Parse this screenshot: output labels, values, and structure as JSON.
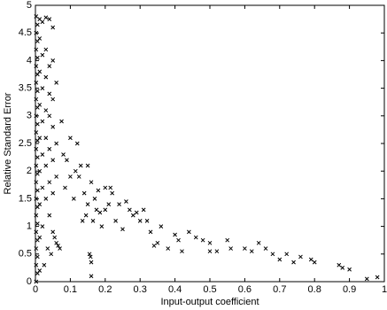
{
  "chart_data": {
    "type": "scatter",
    "xlabel": "Input-output coefficient",
    "ylabel": "Relative Standard Error",
    "color": "#000000",
    "xlim": [
      0,
      1
    ],
    "xticks": [
      0,
      0.1,
      0.2,
      0.3,
      0.4,
      0.5,
      0.6,
      0.7,
      0.8,
      0.9,
      1
    ],
    "ylim": [
      0,
      5
    ],
    "yticks": [
      0,
      0.5,
      1,
      1.5,
      2,
      2.5,
      3,
      3.5,
      4,
      4.5,
      5
    ],
    "grid": false,
    "x": [
      0.002,
      0.002,
      0.002,
      0.002,
      0.002,
      0.002,
      0.002,
      0.002,
      0.002,
      0.002,
      0.002,
      0.002,
      0.002,
      0.002,
      0.002,
      0.002,
      0.002,
      0.006,
      0.006,
      0.006,
      0.006,
      0.006,
      0.006,
      0.006,
      0.006,
      0.006,
      0.006,
      0.006,
      0.006,
      0.006,
      0.006,
      0.006,
      0.006,
      0.012,
      0.012,
      0.012,
      0.012,
      0.012,
      0.012,
      0.012,
      0.012,
      0.012,
      0.02,
      0.02,
      0.02,
      0.02,
      0.02,
      0.02,
      0.02,
      0.03,
      0.03,
      0.03,
      0.03,
      0.03,
      0.03,
      0.03,
      0.04,
      0.04,
      0.04,
      0.04,
      0.04,
      0.04,
      0.04,
      0.05,
      0.05,
      0.05,
      0.05,
      0.05,
      0.05,
      0.05,
      0.06,
      0.06,
      0.06,
      0.06,
      0.055,
      0.065,
      0.07,
      0.075,
      0.08,
      0.085,
      0.09,
      0.1,
      0.1,
      0.11,
      0.115,
      0.12,
      0.125,
      0.13,
      0.135,
      0.14,
      0.145,
      0.15,
      0.15,
      0.155,
      0.158,
      0.16,
      0.16,
      0.16,
      0.165,
      0.17,
      0.175,
      0.18,
      0.185,
      0.19,
      0.2,
      0.2,
      0.21,
      0.215,
      0.22,
      0.23,
      0.24,
      0.25,
      0.26,
      0.27,
      0.28,
      0.29,
      0.3,
      0.31,
      0.32,
      0.33,
      0.34,
      0.35,
      0.36,
      0.38,
      0.4,
      0.41,
      0.42,
      0.44,
      0.46,
      0.48,
      0.5,
      0.5,
      0.52,
      0.55,
      0.56,
      0.6,
      0.62,
      0.64,
      0.66,
      0.68,
      0.7,
      0.72,
      0.74,
      0.76,
      0.79,
      0.8,
      0.87,
      0.88,
      0.9,
      0.95,
      0.98,
      0.035,
      0.045,
      0.025
    ],
    "values": [
      0,
      0.3,
      0.6,
      0.9,
      1.2,
      1.5,
      1.8,
      2.1,
      2.4,
      2.7,
      3.0,
      3.3,
      3.6,
      3.9,
      4.2,
      4.5,
      4.8,
      0.15,
      0.45,
      0.75,
      1.05,
      1.35,
      1.65,
      1.95,
      2.25,
      2.55,
      2.85,
      3.15,
      3.45,
      3.75,
      4.05,
      4.35,
      4.65,
      0.2,
      0.8,
      1.4,
      2.0,
      2.6,
      3.2,
      3.8,
      4.4,
      4.75,
      1.0,
      1.7,
      2.3,
      2.9,
      3.5,
      4.1,
      4.7,
      1.5,
      2.1,
      2.6,
      3.1,
      3.7,
      4.2,
      4.78,
      1.2,
      1.8,
      2.4,
      3.0,
      3.4,
      3.9,
      4.75,
      0.9,
      1.6,
      2.2,
      2.8,
      3.3,
      4.0,
      4.6,
      0.7,
      1.9,
      2.5,
      3.6,
      0.8,
      0.65,
      0.6,
      2.9,
      2.3,
      1.7,
      2.2,
      2.6,
      1.9,
      1.5,
      2.0,
      2.5,
      1.9,
      2.1,
      1.1,
      1.6,
      1.2,
      2.1,
      1.4,
      0.5,
      0.45,
      0.35,
      0.1,
      1.8,
      1.1,
      1.5,
      1.3,
      1.65,
      1.25,
      1.0,
      1.7,
      1.3,
      1.4,
      1.7,
      1.6,
      1.1,
      1.4,
      0.95,
      1.45,
      1.3,
      1.2,
      1.25,
      1.1,
      1.3,
      1.1,
      0.9,
      0.65,
      0.7,
      1.0,
      0.6,
      0.85,
      0.75,
      0.55,
      0.9,
      0.8,
      0.75,
      0.7,
      0.55,
      0.55,
      0.75,
      0.6,
      0.6,
      0.55,
      0.7,
      0.6,
      0.5,
      0.4,
      0.5,
      0.35,
      0.45,
      0.4,
      0.35,
      0.3,
      0.25,
      0.22,
      0.05,
      0.08,
      0.6,
      0.5,
      0.3
    ]
  }
}
